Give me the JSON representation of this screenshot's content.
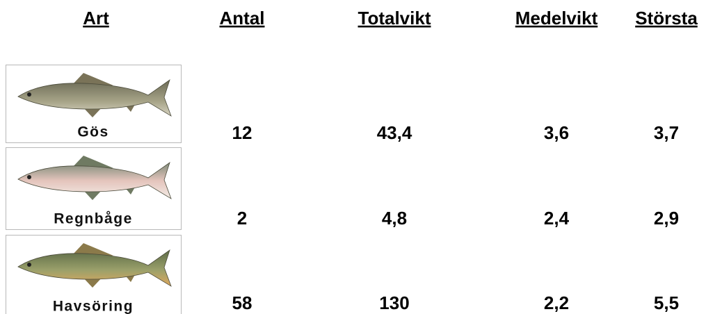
{
  "table": {
    "headers": [
      "Art",
      "Antal",
      "Totalvikt",
      "Medelvikt",
      "Största"
    ],
    "rows": [
      [
        "Gös",
        "12",
        "43,4",
        "3,6",
        "3,7"
      ],
      [
        "Regnbåge",
        "2",
        "4,8",
        "2,4",
        "2,9"
      ],
      [
        "Havsöring",
        "58",
        "130",
        "2,2",
        "5,5"
      ]
    ]
  }
}
